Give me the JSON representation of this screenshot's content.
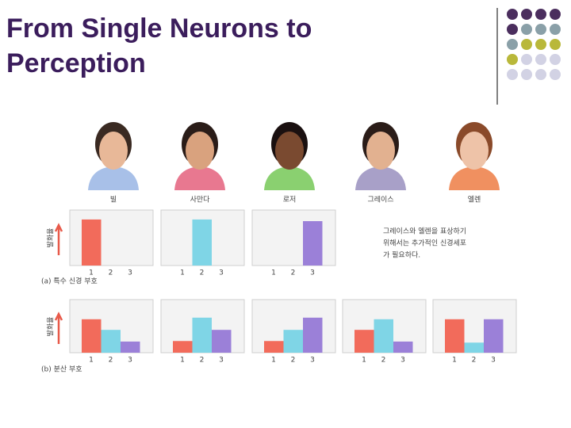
{
  "title": "From Single Neurons to Perception",
  "faces": [
    "빌",
    "사만다",
    "로저",
    "그레이스",
    "엘렌"
  ],
  "y_label": "발화율",
  "captions": [
    "(a) 특수 신경 부호",
    "(b) 분산 부호"
  ],
  "note": [
    "그레이스와 엘렌을 표상하기",
    "위해서는 추가적인 신경세포",
    "가 필요하다."
  ],
  "chart_data": [
    {
      "type": "bar",
      "categories": [
        "1",
        "2",
        "3"
      ],
      "values": [
        83,
        0,
        0
      ],
      "colors": [
        "#f26b5b",
        "#7fd5e6",
        "#9b80d8"
      ],
      "ylim": [
        0,
        100
      ]
    },
    {
      "type": "bar",
      "categories": [
        "1",
        "2",
        "3"
      ],
      "values": [
        0,
        83,
        0
      ],
      "colors": [
        "#f26b5b",
        "#7fd5e6",
        "#9b80d8"
      ],
      "ylim": [
        0,
        100
      ]
    },
    {
      "type": "bar",
      "categories": [
        "1",
        "2",
        "3"
      ],
      "values": [
        0,
        0,
        80
      ],
      "colors": [
        "#f26b5b",
        "#7fd5e6",
        "#9b80d8"
      ],
      "ylim": [
        0,
        100
      ]
    },
    {
      "type": "bar",
      "categories": [
        "1",
        "2",
        "3"
      ],
      "values": [
        63,
        43,
        21
      ],
      "colors": [
        "#f26b5b",
        "#7fd5e6",
        "#9b80d8"
      ],
      "ylim": [
        0,
        100
      ]
    },
    {
      "type": "bar",
      "categories": [
        "1",
        "2",
        "3"
      ],
      "values": [
        22,
        66,
        43
      ],
      "colors": [
        "#f26b5b",
        "#7fd5e6",
        "#9b80d8"
      ],
      "ylim": [
        0,
        100
      ]
    },
    {
      "type": "bar",
      "categories": [
        "1",
        "2",
        "3"
      ],
      "values": [
        22,
        43,
        66
      ],
      "colors": [
        "#f26b5b",
        "#7fd5e6",
        "#9b80d8"
      ],
      "ylim": [
        0,
        100
      ]
    },
    {
      "type": "bar",
      "categories": [
        "1",
        "2",
        "3"
      ],
      "values": [
        43,
        63,
        21
      ],
      "colors": [
        "#f26b5b",
        "#7fd5e6",
        "#9b80d8"
      ],
      "ylim": [
        0,
        100
      ]
    },
    {
      "type": "bar",
      "categories": [
        "1",
        "2",
        "3"
      ],
      "values": [
        63,
        19,
        63
      ],
      "colors": [
        "#f26b5b",
        "#7fd5e6",
        "#9b80d8"
      ],
      "ylim": [
        0,
        100
      ]
    }
  ]
}
